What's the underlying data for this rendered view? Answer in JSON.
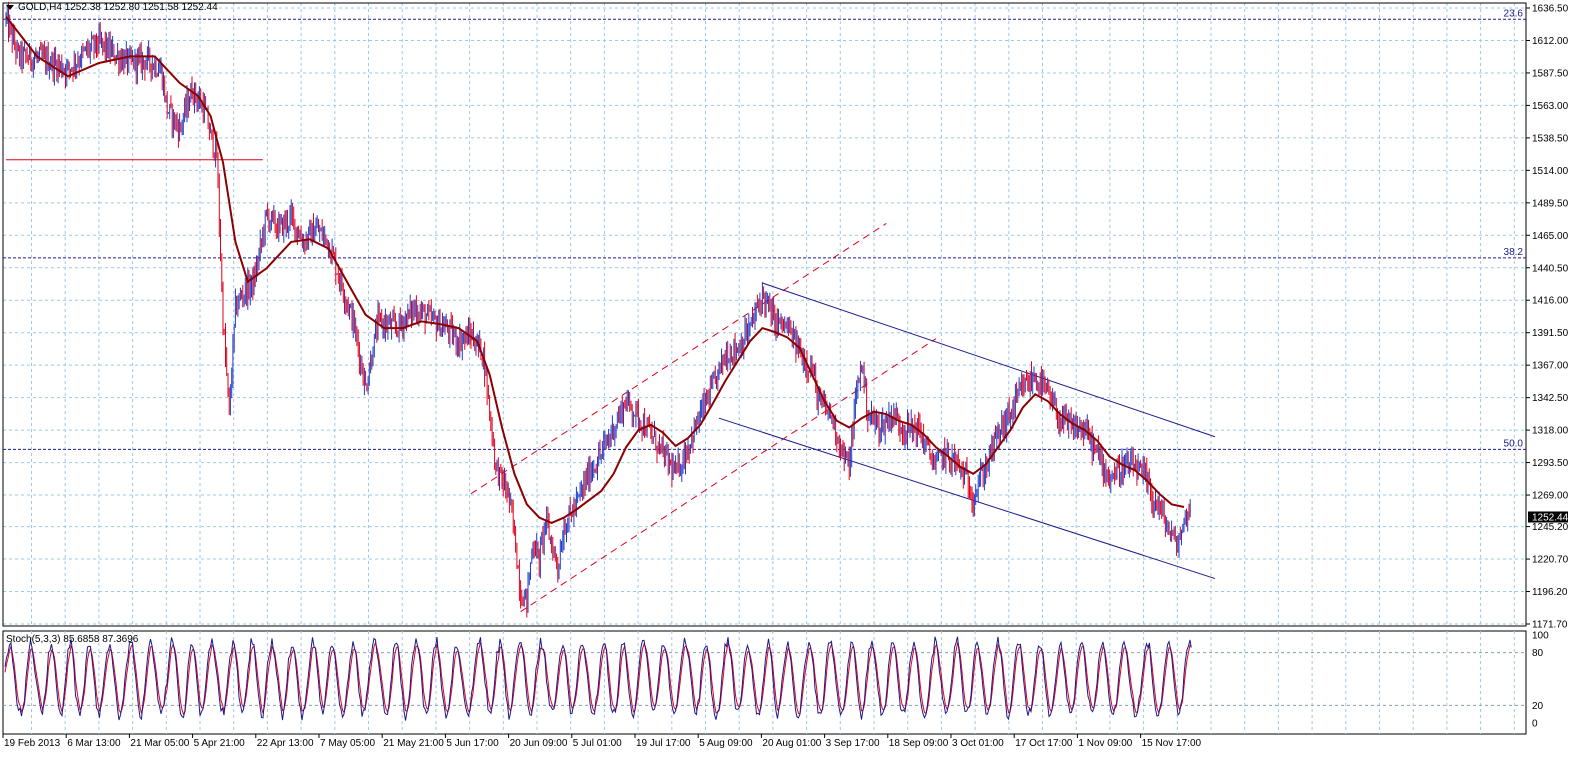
{
  "header": {
    "symbol": "GOLD,H4",
    "open": "1252.38",
    "high": "1252.80",
    "low": "1251.58",
    "close": "1252.44"
  },
  "stoch": {
    "label": "Stoch(5,3,3)",
    "main": "85.6858",
    "signal": "87.3696"
  },
  "colors": {
    "grid": "#9cc9e6",
    "bull": "#1e3cc8",
    "bear": "#e0001c",
    "ma": "#8b0000",
    "fib": "#1a1a8c",
    "support": "#e0001c",
    "channel_up": "#e0001c",
    "channel_down": "#1a1a8c",
    "stoch_main": "#1a1a8c",
    "stoch_signal": "#e0001c"
  },
  "chart_data": [
    {
      "type": "candlestick",
      "instrument": "GOLD",
      "timeframe": "H4",
      "ylim": [
        1171.7,
        1636.5
      ],
      "y_ticks": [
        "1636.50",
        "1612.00",
        "1587.50",
        "1563.00",
        "1538.50",
        "1514.00",
        "1489.50",
        "1465.00",
        "1440.50",
        "1416.00",
        "1391.50",
        "1367.00",
        "1342.50",
        "1318.00",
        "1293.50",
        "1269.00",
        "1245.20",
        "1220.70",
        "1196.20",
        "1171.70"
      ],
      "x_ticks": [
        "19 Feb 2013",
        "6 Mar 13:00",
        "21 Mar 05:00",
        "5 Apr 21:00",
        "22 Apr 13:00",
        "7 May 05:00",
        "21 May 21:00",
        "5 Jun 17:00",
        "20 Jun 09:00",
        "5 Jul 01:00",
        "19 Jul 17:00",
        "5 Aug 09:00",
        "20 Aug 01:00",
        "3 Sep 17:00",
        "18 Sep 09:00",
        "3 Oct 01:00",
        "17 Oct 17:00",
        "1 Nov 09:00",
        "15 Nov 17:00"
      ],
      "current_price": "1252.44",
      "price_path": [
        [
          0,
          1628
        ],
        [
          2,
          1600
        ],
        [
          6,
          1598
        ],
        [
          10,
          1590
        ],
        [
          13,
          1604
        ],
        [
          15,
          1610
        ],
        [
          18,
          1600
        ],
        [
          20,
          1595
        ],
        [
          23,
          1597
        ],
        [
          25,
          1590
        ],
        [
          26,
          1560
        ],
        [
          28,
          1545
        ],
        [
          30,
          1575
        ],
        [
          32,
          1560
        ],
        [
          33,
          1540
        ],
        [
          34,
          1525
        ],
        [
          35,
          1400
        ],
        [
          36,
          1330
        ],
        [
          37,
          1410
        ],
        [
          38,
          1420
        ],
        [
          40,
          1430
        ],
        [
          42,
          1480
        ],
        [
          44,
          1470
        ],
        [
          46,
          1478
        ],
        [
          48,
          1460
        ],
        [
          50,
          1470
        ],
        [
          52,
          1460
        ],
        [
          54,
          1430
        ],
        [
          56,
          1400
        ],
        [
          58,
          1350
        ],
        [
          60,
          1400
        ],
        [
          63,
          1395
        ],
        [
          66,
          1410
        ],
        [
          69,
          1400
        ],
        [
          71,
          1395
        ],
        [
          73,
          1385
        ],
        [
          75,
          1390
        ],
        [
          77,
          1375
        ],
        [
          79,
          1290
        ],
        [
          81,
          1270
        ],
        [
          82,
          1240
        ],
        [
          83,
          1195
        ],
        [
          84,
          1190
        ],
        [
          85,
          1235
        ],
        [
          86,
          1220
        ],
        [
          87,
          1250
        ],
        [
          88,
          1232
        ],
        [
          89,
          1215
        ],
        [
          90,
          1245
        ],
        [
          92,
          1262
        ],
        [
          94,
          1285
        ],
        [
          96,
          1300
        ],
        [
          98,
          1320
        ],
        [
          100,
          1340
        ],
        [
          102,
          1328
        ],
        [
          104,
          1315
        ],
        [
          106,
          1300
        ],
        [
          108,
          1285
        ],
        [
          110,
          1305
        ],
        [
          112,
          1330
        ],
        [
          114,
          1350
        ],
        [
          116,
          1375
        ],
        [
          118,
          1380
        ],
        [
          120,
          1395
        ],
        [
          122,
          1420
        ],
        [
          124,
          1400
        ],
        [
          126,
          1395
        ],
        [
          128,
          1378
        ],
        [
          129,
          1370
        ],
        [
          130,
          1365
        ],
        [
          131,
          1340
        ],
        [
          133,
          1330
        ],
        [
          135,
          1300
        ],
        [
          136,
          1290
        ],
        [
          137,
          1340
        ],
        [
          138,
          1370
        ],
        [
          139,
          1330
        ],
        [
          141,
          1320
        ],
        [
          143,
          1330
        ],
        [
          145,
          1318
        ],
        [
          147,
          1320
        ],
        [
          149,
          1300
        ],
        [
          150,
          1290
        ],
        [
          151,
          1300
        ],
        [
          153,
          1295
        ],
        [
          155,
          1280
        ],
        [
          156,
          1268
        ],
        [
          157,
          1280
        ],
        [
          158,
          1290
        ],
        [
          160,
          1315
        ],
        [
          162,
          1330
        ],
        [
          164,
          1350
        ],
        [
          166,
          1358
        ],
        [
          168,
          1345
        ],
        [
          170,
          1325
        ],
        [
          172,
          1320
        ],
        [
          174,
          1318
        ],
        [
          176,
          1300
        ],
        [
          178,
          1282
        ],
        [
          180,
          1290
        ],
        [
          182,
          1290
        ],
        [
          184,
          1280
        ],
        [
          185,
          1265
        ],
        [
          186,
          1260
        ],
        [
          187,
          1248
        ],
        [
          188,
          1238
        ],
        [
          189,
          1232
        ],
        [
          190,
          1248
        ],
        [
          191,
          1262
        ]
      ],
      "moving_average_path": [
        [
          0,
          1630
        ],
        [
          5,
          1600
        ],
        [
          10,
          1585
        ],
        [
          15,
          1595
        ],
        [
          20,
          1600
        ],
        [
          24,
          1600
        ],
        [
          28,
          1580
        ],
        [
          31,
          1570
        ],
        [
          33,
          1555
        ],
        [
          35,
          1520
        ],
        [
          37,
          1460
        ],
        [
          39,
          1430
        ],
        [
          42,
          1440
        ],
        [
          46,
          1460
        ],
        [
          49,
          1462
        ],
        [
          52,
          1455
        ],
        [
          55,
          1430
        ],
        [
          58,
          1405
        ],
        [
          61,
          1395
        ],
        [
          64,
          1395
        ],
        [
          67,
          1400
        ],
        [
          70,
          1398
        ],
        [
          73,
          1395
        ],
        [
          76,
          1385
        ],
        [
          78,
          1360
        ],
        [
          80,
          1320
        ],
        [
          82,
          1285
        ],
        [
          84,
          1262
        ],
        [
          86,
          1252
        ],
        [
          88,
          1248
        ],
        [
          90,
          1252
        ],
        [
          92,
          1258
        ],
        [
          94,
          1265
        ],
        [
          96,
          1272
        ],
        [
          98,
          1285
        ],
        [
          100,
          1305
        ],
        [
          102,
          1318
        ],
        [
          104,
          1322
        ],
        [
          106,
          1316
        ],
        [
          108,
          1306
        ],
        [
          110,
          1312
        ],
        [
          112,
          1322
        ],
        [
          114,
          1338
        ],
        [
          116,
          1355
        ],
        [
          118,
          1370
        ],
        [
          120,
          1385
        ],
        [
          122,
          1395
        ],
        [
          124,
          1392
        ],
        [
          126,
          1388
        ],
        [
          128,
          1380
        ],
        [
          130,
          1360
        ],
        [
          132,
          1340
        ],
        [
          134,
          1325
        ],
        [
          136,
          1320
        ],
        [
          138,
          1327
        ],
        [
          140,
          1332
        ],
        [
          142,
          1330
        ],
        [
          144,
          1325
        ],
        [
          146,
          1322
        ],
        [
          148,
          1315
        ],
        [
          150,
          1305
        ],
        [
          152,
          1298
        ],
        [
          154,
          1290
        ],
        [
          156,
          1285
        ],
        [
          158,
          1292
        ],
        [
          160,
          1305
        ],
        [
          162,
          1318
        ],
        [
          164,
          1335
        ],
        [
          166,
          1345
        ],
        [
          168,
          1340
        ],
        [
          170,
          1330
        ],
        [
          172,
          1323
        ],
        [
          174,
          1318
        ],
        [
          176,
          1310
        ],
        [
          178,
          1298
        ],
        [
          180,
          1292
        ],
        [
          182,
          1288
        ],
        [
          184,
          1280
        ],
        [
          186,
          1270
        ],
        [
          188,
          1262
        ],
        [
          190,
          1260
        ]
      ],
      "fibonacci_levels": [
        {
          "label": "23.6",
          "price": 1628.0
        },
        {
          "label": "38.2",
          "price": 1448.0
        },
        {
          "label": "50.0",
          "price": 1303.5
        }
      ],
      "support_level": {
        "price": 1522.0,
        "from_index": 0,
        "to_index": 39
      },
      "ascending_channel": {
        "lower": [
          [
            83,
            1181
          ],
          [
            150,
            1387
          ]
        ],
        "upper": [
          [
            75,
            1270
          ],
          [
            142,
            1474
          ]
        ]
      },
      "descending_channel": {
        "upper": [
          [
            122,
            1429
          ],
          [
            195,
            1313
          ]
        ],
        "lower": [
          [
            115,
            1327
          ],
          [
            195,
            1206
          ]
        ]
      }
    },
    {
      "type": "line",
      "indicator": "Stochastic Oscillator",
      "parameters": [
        5,
        3,
        3
      ],
      "ylim": [
        0,
        100
      ],
      "y_ticks": [
        "100",
        "80",
        "20",
        "0"
      ],
      "levels": [
        80,
        20
      ],
      "last_main": 85.6858,
      "last_signal": 87.3696
    }
  ]
}
